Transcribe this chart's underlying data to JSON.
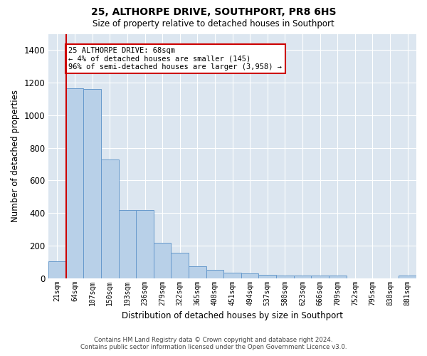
{
  "title": "25, ALTHORPE DRIVE, SOUTHPORT, PR8 6HS",
  "subtitle": "Size of property relative to detached houses in Southport",
  "xlabel": "Distribution of detached houses by size in Southport",
  "ylabel": "Number of detached properties",
  "footer_line1": "Contains HM Land Registry data © Crown copyright and database right 2024.",
  "footer_line2": "Contains public sector information licensed under the Open Government Licence v3.0.",
  "annotation_title": "25 ALTHORPE DRIVE: 68sqm",
  "annotation_line1": "← 4% of detached houses are smaller (145)",
  "annotation_line2": "96% of semi-detached houses are larger (3,958) →",
  "bar_color": "#b8d0e8",
  "bar_edge_color": "#6699cc",
  "highlight_line_color": "#cc0000",
  "annotation_box_color": "#cc0000",
  "background_color": "#ffffff",
  "grid_color": "#dce6f0",
  "categories": [
    "21sqm",
    "64sqm",
    "107sqm",
    "150sqm",
    "193sqm",
    "236sqm",
    "279sqm",
    "322sqm",
    "365sqm",
    "408sqm",
    "451sqm",
    "494sqm",
    "537sqm",
    "580sqm",
    "623sqm",
    "666sqm",
    "709sqm",
    "752sqm",
    "795sqm",
    "838sqm",
    "881sqm"
  ],
  "values": [
    105,
    1165,
    1160,
    730,
    420,
    420,
    218,
    155,
    73,
    50,
    33,
    30,
    20,
    15,
    15,
    15,
    15,
    0,
    0,
    0,
    15
  ],
  "highlight_bar_index": 1,
  "ylim": [
    0,
    1500
  ],
  "yticks": [
    0,
    200,
    400,
    600,
    800,
    1000,
    1200,
    1400
  ]
}
